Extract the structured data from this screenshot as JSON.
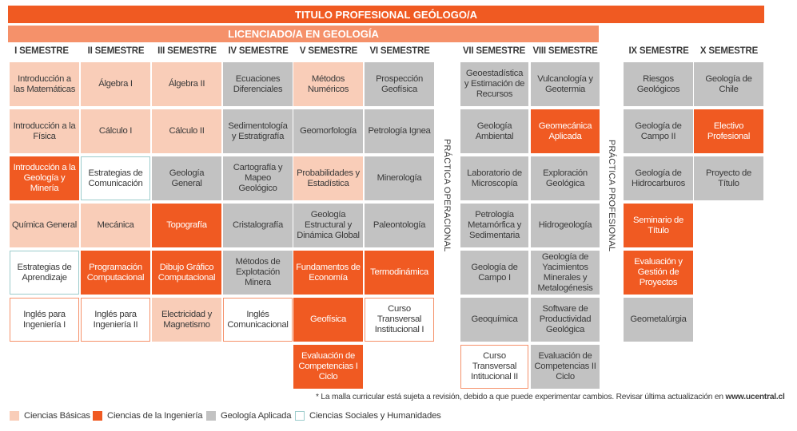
{
  "header": {
    "title": "TITULO PROFESIONAL GEÓLOGO/A",
    "subtitle": "LICENCIADO/A EN GEOLOGÍA"
  },
  "semesters": [
    "I SEMESTRE",
    "II SEMESTRE",
    "III SEMESTRE",
    "IV SEMESTRE",
    "V SEMESTRE",
    "VI SEMESTRE",
    "VII SEMESTRE",
    "VIII SEMESTRE",
    "IX SEMESTRE",
    "X SEMESTRE"
  ],
  "practicas": {
    "operacional": "PRÁCTICA OPERACIONAL",
    "profesional": "PRÁCTICA PROFESIONAL"
  },
  "courses": {
    "s1": [
      "Introducción a las Matemáticas",
      "Introducción a la Física",
      "Introducción a la Geología y Minería",
      "Química General",
      "Estrategias de Aprendizaje",
      "Inglés para Ingeniería I"
    ],
    "s2": [
      "Álgebra I",
      "Cálculo I",
      "Estrategias de Comunicación",
      "Mecánica",
      "Programación Computacional",
      "Inglés para Ingeniería II"
    ],
    "s3": [
      "Álgebra II",
      "Cálculo II",
      "Geología General",
      "Topografía",
      "Dibujo Gráfico Computacional",
      "Electricidad y Magnetismo"
    ],
    "s4": [
      "Ecuaciones Diferenciales",
      "Sedimentología y Estratigrafía",
      "Cartografía y Mapeo Geológico",
      "Cristalografía",
      "Métodos de Explotación Minera",
      "Inglés Comunicacional"
    ],
    "s5": [
      "Métodos Numéricos",
      "Geomorfología",
      "Probabilidades y Estadística",
      "Geología Estructural y Dinámica Global",
      "Fundamentos de Economía",
      "Geofísica",
      "Evaluación de Competencias I Ciclo"
    ],
    "s6": [
      "Prospección Geofísica",
      "Petrología Ignea",
      "Minerología",
      "Paleontología",
      "Termodinámica",
      "Curso Transversal Institucional I"
    ],
    "s7": [
      "Geoestadística y Estimación de Recursos",
      "Geología Ambiental",
      "Laboratorio de Microscopía",
      "Petrología Metamórfica y Sedimentaria",
      "Geología de Campo I",
      "Geoquímica",
      "Curso Transversal Intitucional II"
    ],
    "s8": [
      "Vulcanología y Geotermia",
      "Geomecánica Aplicada",
      "Exploración Geológica",
      "Hidrogeología",
      "Geología de Yacimientos Minerales y Metalogénesis",
      "Software de Productividad Geológica",
      "Evaluación de Competencias II Ciclo"
    ],
    "s9": [
      "Riesgos Geológicos",
      "Geología de Campo II",
      "Geología de Hidrocarburos",
      "Seminario de Título",
      "Evaluación y Gestión de Proyectos",
      "Geometalúrgia"
    ],
    "s10": [
      "Geología de Chile",
      "Electivo Profesional",
      "Proyecto de Título"
    ]
  },
  "note": {
    "text": "* La malla curricular está sujeta a revisión, debido a que puede experimentar cambios. Revisar última actualización en ",
    "url": "www.ucentral.cl"
  },
  "legend": [
    "Ciencias Básicas",
    "Ciencias de la Ingeniería",
    "Geología Aplicada",
    "Ciencias Sociales y Humanidades"
  ],
  "colors": {
    "ciencias_basicas": "#f9cdb8",
    "ciencias_ingenieria": "#f05a22",
    "geologia_aplicada": "#c2c2c2",
    "ciencias_sociales_border": "#9ccccc",
    "title_banner": "#f05a22",
    "subtitle_banner": "#f5916a"
  }
}
